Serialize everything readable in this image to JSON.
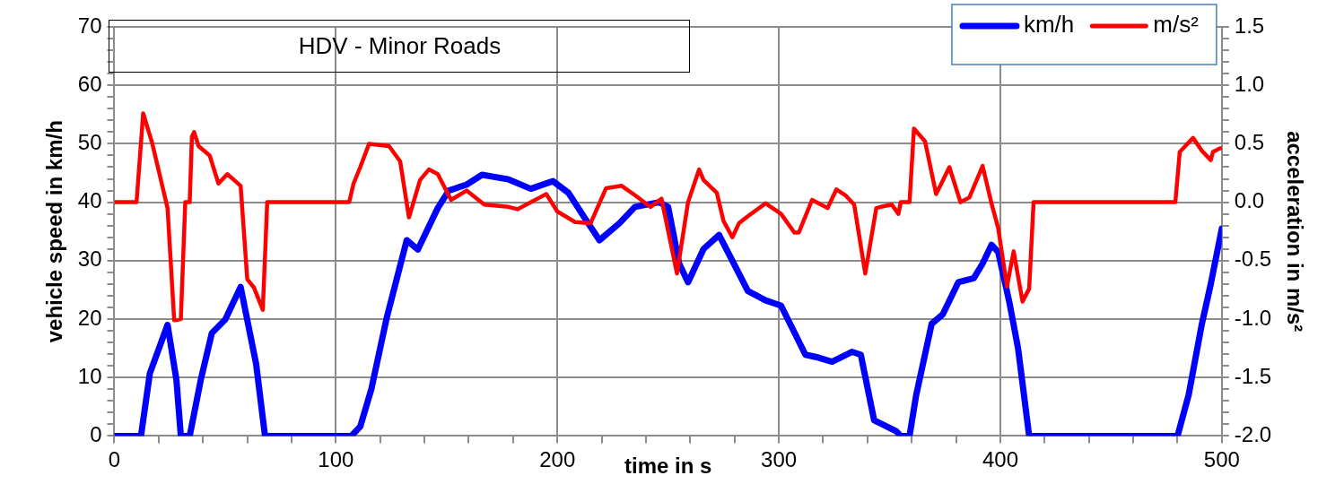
{
  "chart_data": {
    "type": "line",
    "title": "HDV - Minor Roads",
    "xlabel": "time in s",
    "ylabel": "vehicle speed in km/h",
    "y2label": "acceleration in m/s²",
    "xlim": [
      0,
      500
    ],
    "xticks": [
      0,
      {
        "value": 20,
        "label": null
      },
      {
        "value": 40,
        "label": null
      },
      {
        "value": 60,
        "label": null
      },
      {
        "value": 80,
        "label": null
      },
      100,
      {
        "value": 120,
        "label": null
      },
      {
        "value": 140,
        "label": null
      },
      {
        "value": 160,
        "label": null
      },
      {
        "value": 180,
        "label": null
      },
      200,
      {
        "value": 220,
        "label": null
      },
      {
        "value": 240,
        "label": null
      },
      {
        "value": 260,
        "label": null
      },
      {
        "value": 280,
        "label": null
      },
      300,
      {
        "value": 320,
        "label": null
      },
      {
        "value": 340,
        "label": null
      },
      {
        "value": 360,
        "label": null
      },
      {
        "value": 380,
        "label": null
      },
      400,
      {
        "value": 420,
        "label": null
      },
      {
        "value": 440,
        "label": null
      },
      {
        "value": 460,
        "label": null
      },
      {
        "value": 480,
        "label": null
      },
      500
    ],
    "ylim": [
      0,
      70
    ],
    "yticks": [
      0,
      {
        "value": 2,
        "label": null
      },
      {
        "value": 4,
        "label": null
      },
      {
        "value": 6,
        "label": null
      },
      {
        "value": 8,
        "label": null
      },
      10,
      {
        "value": 12,
        "label": null
      },
      {
        "value": 14,
        "label": null
      },
      {
        "value": 16,
        "label": null
      },
      {
        "value": 18,
        "label": null
      },
      20,
      {
        "value": 22,
        "label": null
      },
      {
        "value": 24,
        "label": null
      },
      {
        "value": 26,
        "label": null
      },
      {
        "value": 28,
        "label": null
      },
      30,
      {
        "value": 32,
        "label": null
      },
      {
        "value": 34,
        "label": null
      },
      {
        "value": 36,
        "label": null
      },
      {
        "value": 38,
        "label": null
      },
      40,
      {
        "value": 42,
        "label": null
      },
      {
        "value": 44,
        "label": null
      },
      {
        "value": 46,
        "label": null
      },
      {
        "value": 48,
        "label": null
      },
      50,
      {
        "value": 52,
        "label": null
      },
      {
        "value": 54,
        "label": null
      },
      {
        "value": 56,
        "label": null
      },
      {
        "value": 58,
        "label": null
      },
      60,
      {
        "value": 62,
        "label": null
      },
      {
        "value": 64,
        "label": null
      },
      {
        "value": 66,
        "label": null
      },
      {
        "value": 68,
        "label": null
      },
      70
    ],
    "y2lim": [
      -2,
      1.5
    ],
    "y2ticks": [
      {
        "value": -2,
        "label": "-2.0"
      },
      {
        "value": -1.9,
        "label": null
      },
      {
        "value": -1.8,
        "label": null
      },
      {
        "value": -1.7,
        "label": null
      },
      {
        "value": -1.6,
        "label": null
      },
      {
        "value": -1.5,
        "label": "-1.5"
      },
      {
        "value": -1.4,
        "label": null
      },
      {
        "value": -1.3,
        "label": null
      },
      {
        "value": -1.2,
        "label": null
      },
      {
        "value": -1.1,
        "label": null
      },
      {
        "value": -1,
        "label": "-1.0"
      },
      {
        "value": -0.9,
        "label": null
      },
      {
        "value": -0.8,
        "label": null
      },
      {
        "value": -0.7,
        "label": null
      },
      {
        "value": -0.6,
        "label": null
      },
      {
        "value": -0.5,
        "label": "-0.5"
      },
      {
        "value": -0.4,
        "label": null
      },
      {
        "value": -0.3,
        "label": null
      },
      {
        "value": -0.2,
        "label": null
      },
      {
        "value": -0.1,
        "label": null
      },
      {
        "value": 0,
        "label": "0.0"
      },
      {
        "value": 0.1,
        "label": null
      },
      {
        "value": 0.2,
        "label": null
      },
      {
        "value": 0.3,
        "label": null
      },
      {
        "value": 0.4,
        "label": null
      },
      {
        "value": 0.5,
        "label": "0.5"
      },
      {
        "value": 0.6,
        "label": null
      },
      {
        "value": 0.7,
        "label": null
      },
      {
        "value": 0.8,
        "label": null
      },
      {
        "value": 0.9,
        "label": null
      },
      {
        "value": 1,
        "label": "1.0"
      },
      {
        "value": 1.1,
        "label": null
      },
      {
        "value": 1.2,
        "label": null
      },
      {
        "value": 1.3,
        "label": null
      },
      {
        "value": 1.4,
        "label": null
      },
      {
        "value": 1.5,
        "label": "1.5"
      }
    ],
    "grid": true,
    "legend": "top right",
    "marker": "none",
    "line_style": "solid",
    "series": [
      {
        "name": "km/h",
        "color": "#0000ff",
        "x": [
          0,
          12,
          16,
          24,
          28,
          30,
          34,
          39,
          44,
          50,
          57,
          64,
          68,
          107,
          111,
          116,
          123,
          132,
          137,
          146,
          151,
          159,
          166,
          178,
          188,
          198,
          205,
          212,
          219,
          228,
          235,
          246,
          250,
          255,
          259,
          266,
          273,
          279,
          286,
          294,
          301,
          312,
          318,
          324,
          333,
          337,
          343,
          353,
          355,
          359,
          362,
          369,
          374,
          381,
          388,
          392,
          396,
          399,
          404,
          408,
          413,
          480,
          485,
          491,
          495,
          500
        ],
        "values": [
          0,
          0,
          10.7,
          19,
          9.6,
          0,
          0,
          9.6,
          17.6,
          19.9,
          25.5,
          12.3,
          0,
          0,
          1.6,
          8,
          20.3,
          33.5,
          31.9,
          39,
          42,
          43,
          44.7,
          43.9,
          42.3,
          43.6,
          41.6,
          37.5,
          33.5,
          36.4,
          39.2,
          40,
          39.2,
          29.5,
          26.3,
          32,
          34.4,
          30,
          24.8,
          23.2,
          22.3,
          13.9,
          13.4,
          12.7,
          14.4,
          13.9,
          2.7,
          0.8,
          0,
          0,
          7,
          19.2,
          20.8,
          26.3,
          27,
          29.5,
          32.7,
          31.5,
          23,
          15,
          0,
          0,
          7,
          19.2,
          26,
          35.5
        ]
      },
      {
        "name": "m/s²",
        "color": "#ff0000",
        "axis": "y2",
        "x": [
          0,
          10,
          13,
          17,
          22,
          24,
          27,
          30,
          32,
          34,
          35,
          36,
          38,
          43,
          47,
          51,
          57,
          60,
          63,
          67,
          69,
          106,
          108,
          111,
          115,
          124,
          129,
          133,
          138,
          142,
          146,
          152,
          159,
          167,
          178,
          182,
          192,
          195,
          200,
          208,
          215,
          222,
          229,
          235,
          242,
          247,
          254,
          259,
          264,
          266,
          272,
          275,
          279,
          282,
          286,
          294,
          301,
          307,
          309,
          315,
          322,
          326,
          330,
          334,
          339,
          344,
          346,
          351,
          354,
          355,
          359,
          361,
          366,
          371,
          377,
          382,
          386,
          392,
          396,
          399,
          403,
          406,
          410,
          413,
          415,
          479,
          481,
          483,
          487,
          491,
          495,
          496,
          499,
          500
        ],
        "values": [
          0,
          0,
          0.76,
          0.51,
          0.11,
          -0.05,
          -1.01,
          -1,
          0,
          0,
          0.56,
          0.6,
          0.48,
          0.4,
          0.16,
          0.24,
          0.14,
          -0.66,
          -0.73,
          -0.92,
          0,
          0,
          0.16,
          0.3,
          0.5,
          0.48,
          0.35,
          -0.13,
          0.19,
          0.28,
          0.24,
          0.02,
          0.1,
          -0.02,
          -0.04,
          -0.06,
          0.04,
          0.07,
          -0.08,
          -0.17,
          -0.18,
          0.12,
          0.14,
          0.06,
          -0.04,
          0.03,
          -0.61,
          0,
          0.28,
          0.19,
          0.08,
          -0.16,
          -0.3,
          -0.18,
          -0.12,
          -0.01,
          -0.1,
          -0.26,
          -0.26,
          0.02,
          -0.05,
          0.11,
          0.06,
          -0.02,
          -0.61,
          -0.05,
          -0.04,
          -0.02,
          -0.1,
          0,
          0,
          0.63,
          0.52,
          0.07,
          0.3,
          0,
          0.04,
          0.31,
          -0.01,
          -0.22,
          -0.72,
          -0.42,
          -0.85,
          -0.74,
          0,
          0,
          0.43,
          0.47,
          0.55,
          0.44,
          0.36,
          0.43,
          0.46,
          0.46
        ]
      }
    ]
  }
}
